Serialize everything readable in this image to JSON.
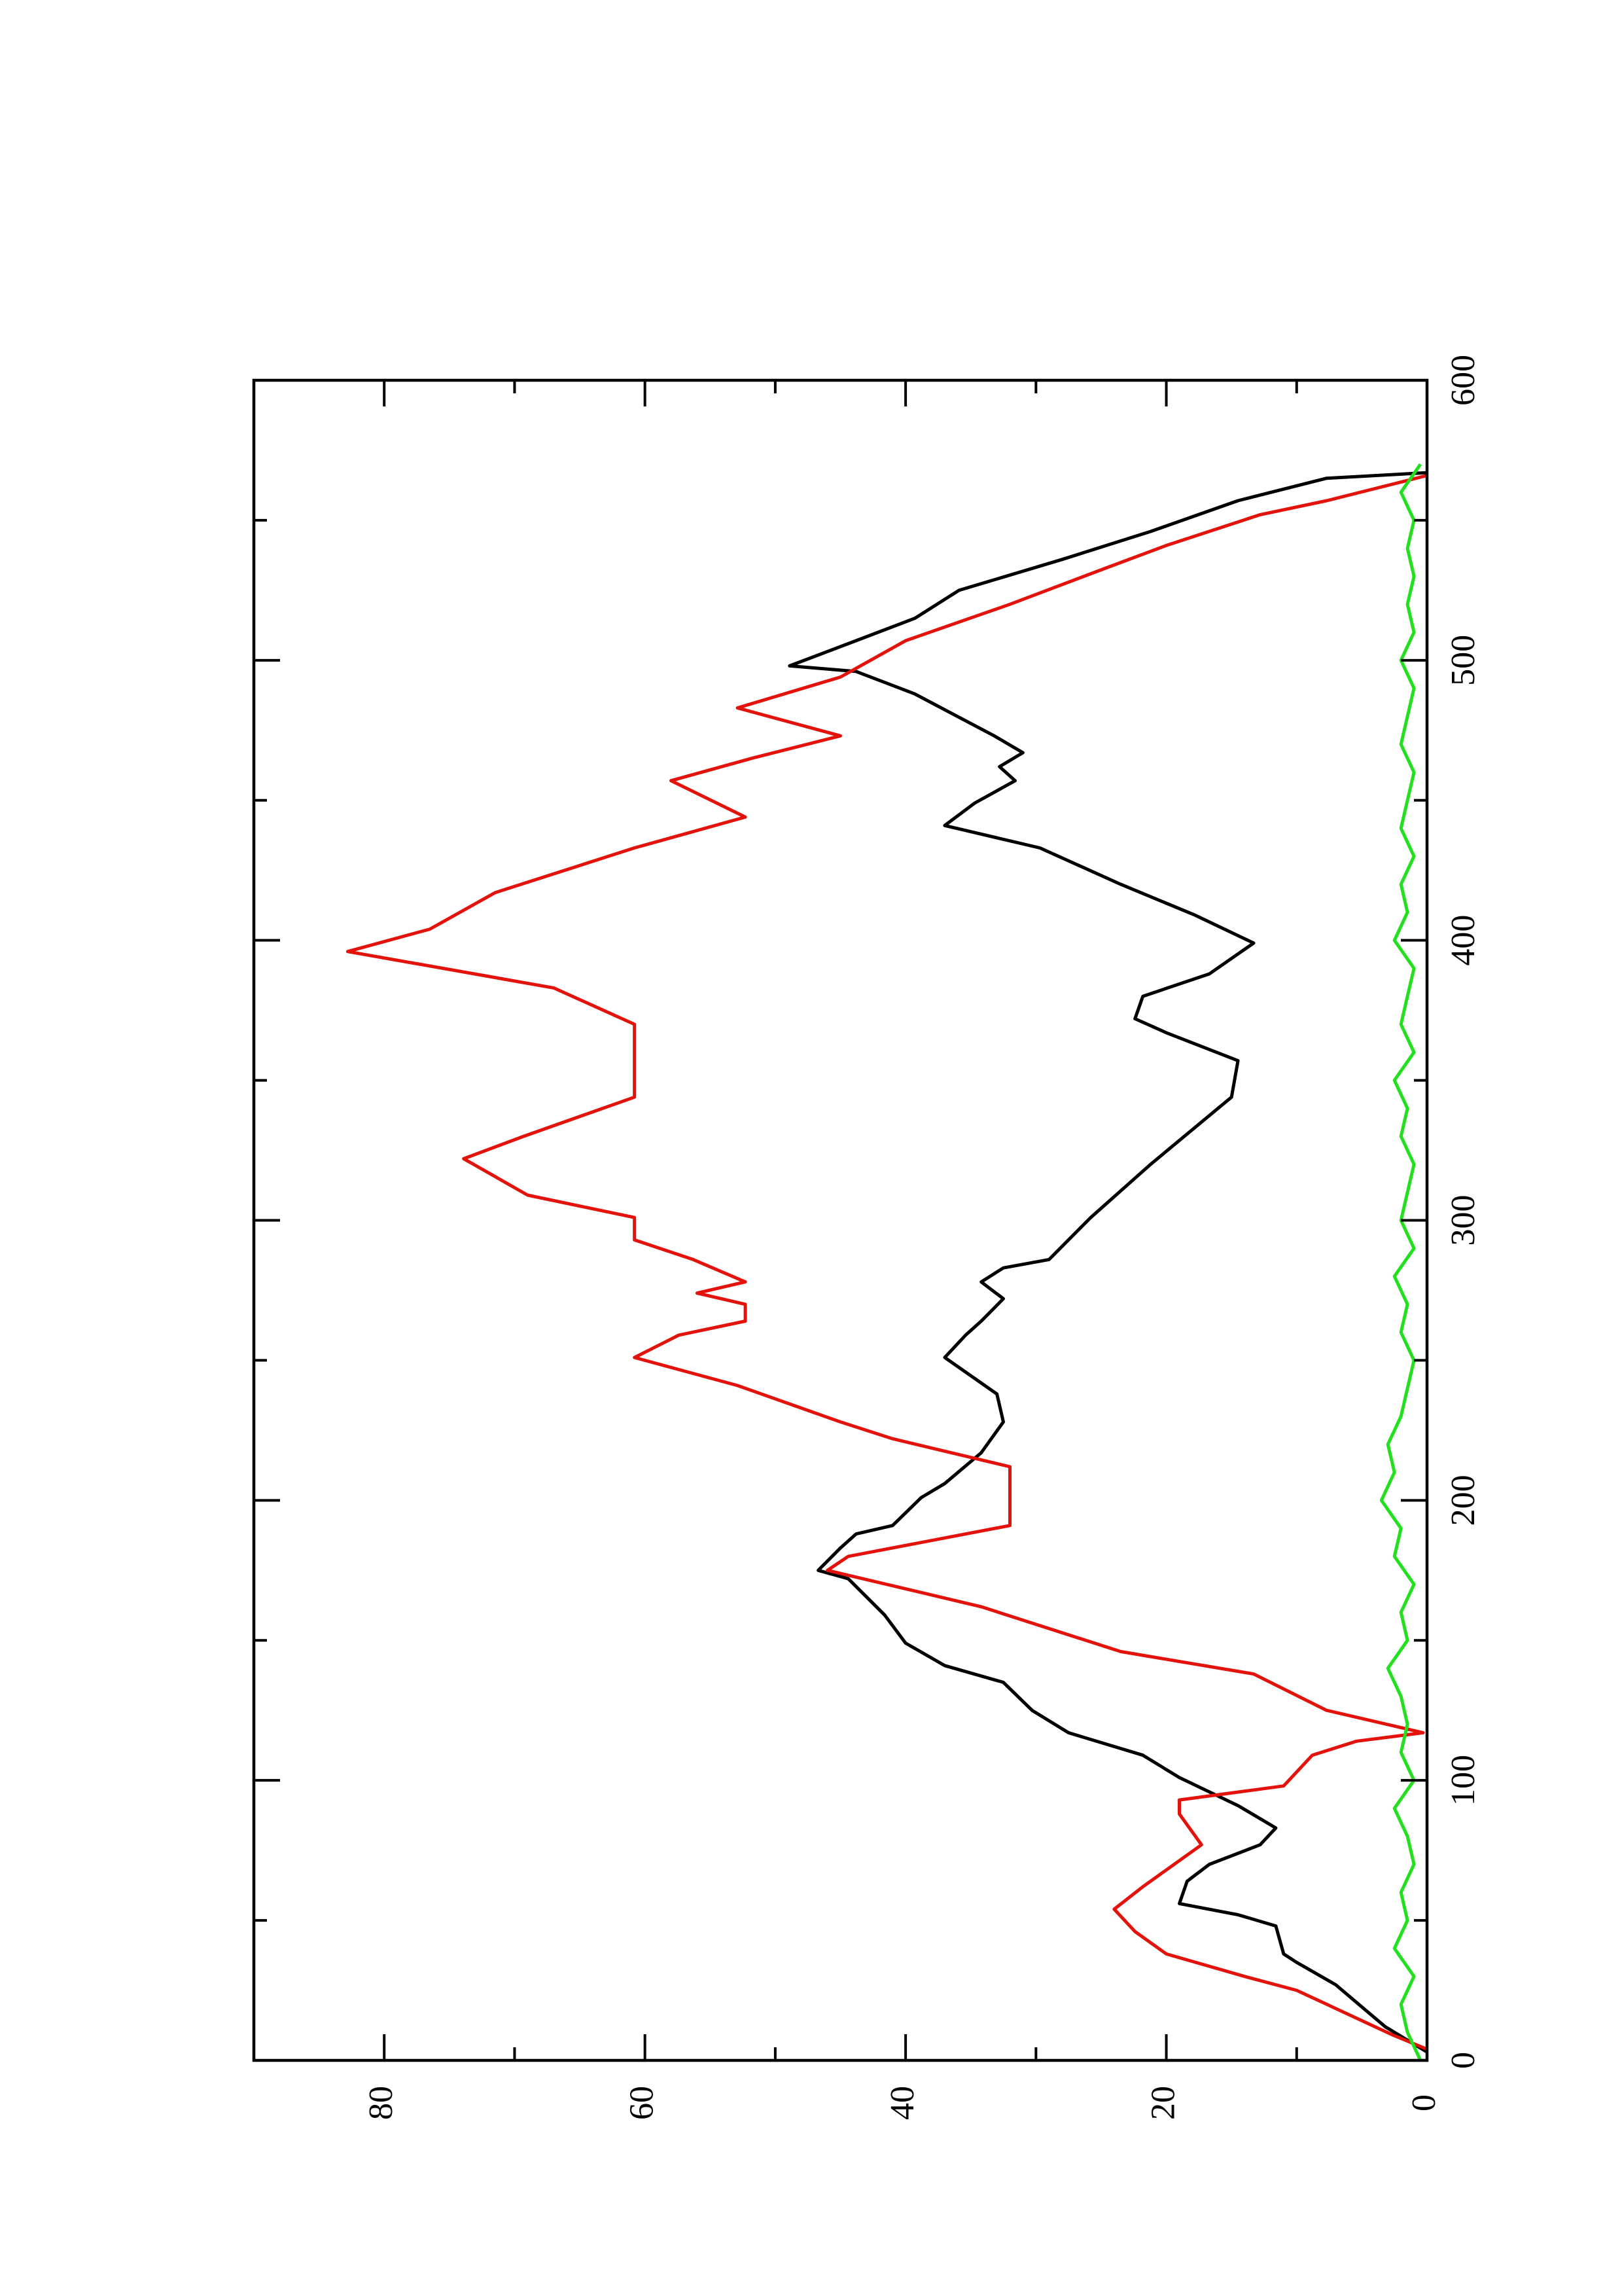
{
  "chart_data": {
    "type": "line",
    "xlim": [
      0,
      600
    ],
    "xticks": [
      0,
      100,
      200,
      300,
      400,
      500,
      600
    ],
    "xminorticks": [
      50,
      150,
      250,
      350,
      450,
      550
    ],
    "ylim": [
      0,
      90
    ],
    "yticks": [
      0,
      20,
      40,
      60,
      80
    ],
    "yminorticks": [
      10,
      30,
      50,
      70
    ],
    "rotated": true,
    "series": [
      {
        "color": "#000000",
        "x": [
          3,
          12,
          27,
          35,
          38,
          48,
          52,
          56,
          64,
          70,
          77,
          83,
          91,
          101,
          109,
          117,
          125,
          135,
          141,
          149,
          159,
          172,
          175,
          183,
          188,
          191,
          201,
          206,
          217,
          228,
          238,
          251,
          259,
          264,
          272,
          278,
          283,
          286,
          301,
          320,
          344,
          357,
          367,
          372,
          380,
          388,
          399,
          409,
          420,
          433,
          441,
          449,
          457,
          462,
          467,
          473,
          488,
          496,
          498,
          507,
          515,
          525,
          536,
          546,
          557,
          565,
          567
        ],
        "values": [
          0,
          3.2,
          7,
          10,
          11,
          11.6,
          14.5,
          19,
          18.4,
          16.7,
          12.8,
          11.6,
          14.5,
          19,
          21.8,
          27.5,
          30.3,
          32.5,
          37,
          40,
          41.6,
          44.4,
          46.7,
          45,
          43.8,
          41,
          38.8,
          37,
          34.2,
          32.5,
          33,
          37,
          35.4,
          34.2,
          32.5,
          34.2,
          32.5,
          29,
          25.8,
          21.2,
          15,
          14.5,
          20,
          22.4,
          21.8,
          16.7,
          13.3,
          17.8,
          23.5,
          29.7,
          37,
          34.7,
          31.6,
          32.8,
          31,
          33.2,
          39.3,
          43.8,
          48.9,
          43.8,
          39.3,
          35.9,
          28,
          21.2,
          14.5,
          7.7,
          0
        ]
      },
      {
        "color": "#e3120b",
        "x": [
          4,
          9,
          25,
          30,
          38,
          46,
          54,
          62,
          77,
          88,
          93,
          98,
          109,
          114,
          117,
          125,
          138,
          146,
          162,
          175,
          180,
          191,
          212,
          222,
          228,
          241,
          251,
          259,
          264,
          270,
          274,
          278,
          286,
          293,
          301,
          309,
          322,
          330,
          344,
          370,
          383,
          396,
          404,
          417,
          433,
          444,
          457,
          465,
          473,
          483,
          494,
          507,
          520,
          533,
          541,
          552,
          557,
          566
        ],
        "values": [
          0,
          2.6,
          10,
          14,
          20,
          22.4,
          24,
          21.8,
          17.3,
          19,
          19,
          11,
          8.8,
          5.4,
          0.3,
          7.7,
          13.3,
          23.5,
          34.2,
          46,
          44.4,
          32,
          32,
          41,
          45,
          52.9,
          60.8,
          57.4,
          52.3,
          52.3,
          56,
          52.3,
          56.3,
          60.8,
          60.8,
          69,
          73.9,
          69.3,
          60.8,
          60.8,
          67,
          82.8,
          76.5,
          71.5,
          60.8,
          52.3,
          58,
          51.8,
          45,
          52.9,
          45,
          40,
          32,
          24.6,
          20,
          12.8,
          7.7,
          0
        ]
      },
      {
        "color": "#22e01e",
        "x": [
          0,
          10,
          20,
          30,
          40,
          50,
          60,
          70,
          80,
          90,
          100,
          110,
          120,
          130,
          140,
          150,
          160,
          170,
          180,
          190,
          200,
          210,
          220,
          230,
          240,
          250,
          260,
          270,
          280,
          290,
          300,
          310,
          320,
          330,
          340,
          350,
          360,
          370,
          380,
          390,
          400,
          410,
          420,
          430,
          440,
          450,
          460,
          470,
          480,
          490,
          500,
          510,
          520,
          530,
          540,
          550,
          560,
          570
        ],
        "values": [
          0.5,
          1.5,
          2,
          1,
          2.5,
          1.5,
          2,
          1,
          1.5,
          2.5,
          1,
          2,
          1.5,
          2,
          3,
          1.5,
          2,
          1,
          2.5,
          2,
          3.5,
          2.5,
          3,
          2,
          1.5,
          1,
          2,
          1.5,
          2.5,
          1,
          2,
          1.5,
          1,
          2,
          1.5,
          2.5,
          1,
          2,
          1.5,
          1,
          2.5,
          1.5,
          2,
          1,
          2,
          1.5,
          1,
          2,
          1.5,
          1,
          2,
          1,
          1.5,
          1,
          1.5,
          1,
          2,
          0.5
        ]
      }
    ]
  }
}
